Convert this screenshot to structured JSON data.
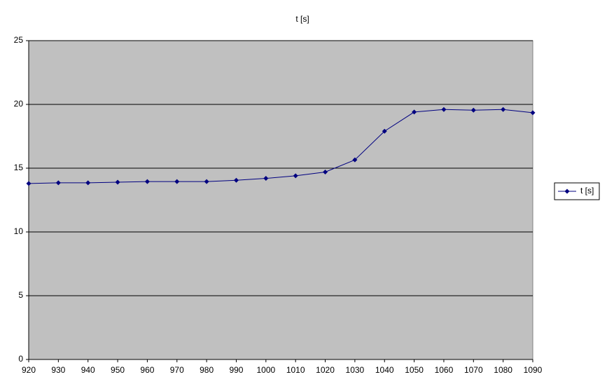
{
  "chart_data": {
    "type": "line",
    "title": "t [s]",
    "x": [
      920,
      930,
      940,
      950,
      960,
      970,
      980,
      990,
      1000,
      1010,
      1020,
      1030,
      1040,
      1050,
      1060,
      1070,
      1080,
      1090
    ],
    "series": [
      {
        "name": "t [s]",
        "color": "#000080",
        "values": [
          13.8,
          13.85,
          13.85,
          13.9,
          13.95,
          13.95,
          13.95,
          14.05,
          14.2,
          14.4,
          14.7,
          15.65,
          17.9,
          19.4,
          19.6,
          19.55,
          19.6,
          19.35
        ]
      }
    ],
    "xlim": [
      920,
      1090
    ],
    "xticks": [
      920,
      930,
      940,
      950,
      960,
      970,
      980,
      990,
      1000,
      1010,
      1020,
      1030,
      1040,
      1050,
      1060,
      1070,
      1080,
      1090
    ],
    "ylim": [
      0,
      25
    ],
    "yticks": [
      0,
      5,
      10,
      15,
      20,
      25
    ],
    "grid": true,
    "legend": "right"
  }
}
